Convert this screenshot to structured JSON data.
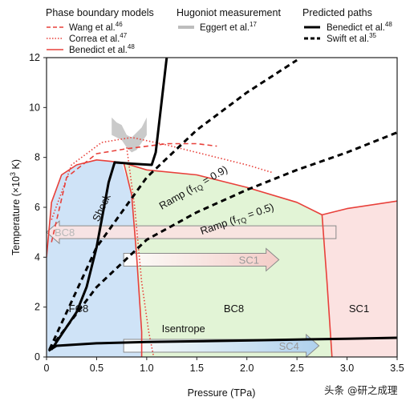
{
  "chart_data": {
    "type": "line",
    "xlabel": "Pressure (TPa)",
    "ylabel": "Temperature (×10³ K)",
    "xlim": [
      0,
      3.5
    ],
    "ylim": [
      0,
      12
    ],
    "x_ticks": [
      "0",
      "0.5",
      "1.0",
      "1.5",
      "2.0",
      "2.5",
      "3.0",
      "3.5"
    ],
    "y_ticks": [
      "0",
      "2",
      "4",
      "6",
      "8",
      "10",
      "12"
    ],
    "legend": {
      "groups": [
        {
          "title": "Phase boundary models",
          "entries": [
            {
              "label": "Wang et al.",
              "sup": "46",
              "style": "dashed",
              "color": "#e8403a"
            },
            {
              "label": "Correa et al.",
              "sup": "47",
              "style": "dotted",
              "color": "#e8403a"
            },
            {
              "label": "Benedict et al.",
              "sup": "48",
              "style": "solid",
              "color": "#e8403a"
            }
          ]
        },
        {
          "title": "Hugoniot measurement",
          "entries": [
            {
              "label": "Eggert et al.",
              "sup": "17",
              "style": "band",
              "color": "#bdbdbd"
            }
          ]
        },
        {
          "title": "Predicted paths",
          "entries": [
            {
              "label": "Benedict et al.",
              "sup": "48",
              "style": "solid-thick",
              "color": "#000000"
            },
            {
              "label": "Swift et al.",
              "sup": "35",
              "style": "dashed-thick",
              "color": "#000000"
            }
          ]
        }
      ]
    },
    "region_fills": {
      "FC8": "#cfe3f7",
      "BC8": "#e2f4d6",
      "SC1": "#fbe2e1"
    },
    "region_labels": [
      {
        "text": "FC8",
        "x": 0.32,
        "y": 1.8
      },
      {
        "text": "BC8",
        "x": 1.87,
        "y": 1.8
      },
      {
        "text": "SC1",
        "x": 3.12,
        "y": 1.8
      }
    ],
    "phase_boundaries": [
      {
        "name": "Benedict et al. melt",
        "style": "solid",
        "color": "#e8403a",
        "points": [
          [
            0.0,
            4.0
          ],
          [
            0.05,
            6.2
          ],
          [
            0.15,
            7.3
          ],
          [
            0.3,
            7.7
          ],
          [
            0.5,
            7.9
          ],
          [
            0.75,
            7.8
          ],
          [
            1.0,
            7.5
          ],
          [
            1.5,
            7.3
          ],
          [
            2.0,
            6.8
          ],
          [
            2.5,
            6.2
          ],
          [
            2.75,
            5.7
          ],
          [
            3.0,
            5.95
          ],
          [
            3.5,
            6.25
          ]
        ]
      },
      {
        "name": "Benedict et al. FC8/BC8",
        "style": "solid",
        "color": "#e8403a",
        "points": [
          [
            0.77,
            7.8
          ],
          [
            0.85,
            6.5
          ],
          [
            0.9,
            4.0
          ],
          [
            0.95,
            1.0
          ],
          [
            0.95,
            0.0
          ]
        ]
      },
      {
        "name": "Benedict et al. BC8/SC1",
        "style": "solid",
        "color": "#e8403a",
        "points": [
          [
            2.75,
            5.7
          ],
          [
            2.8,
            3.0
          ],
          [
            2.85,
            0.0
          ]
        ]
      },
      {
        "name": "Wang et al.",
        "style": "dashed",
        "color": "#e8403a",
        "points": [
          [
            0.05,
            4.6
          ],
          [
            0.2,
            7.2
          ],
          [
            0.5,
            8.15
          ],
          [
            0.8,
            8.35
          ],
          [
            1.2,
            8.55
          ],
          [
            1.5,
            8.55
          ],
          [
            1.7,
            8.45
          ]
        ]
      },
      {
        "name": "Correa et al.",
        "style": "dotted",
        "color": "#e8403a",
        "points": [
          [
            0.05,
            5.5
          ],
          [
            0.25,
            7.7
          ],
          [
            0.55,
            8.6
          ],
          [
            0.85,
            8.8
          ],
          [
            1.2,
            8.5
          ],
          [
            1.6,
            8.1
          ],
          [
            2.0,
            7.7
          ],
          [
            2.25,
            7.4
          ]
        ]
      },
      {
        "name": "Correa et al. FC8/BC8",
        "style": "dotted",
        "color": "#e8403a",
        "points": [
          [
            0.8,
            8.4
          ],
          [
            0.88,
            6.0
          ],
          [
            0.95,
            3.0
          ],
          [
            1.02,
            1.0
          ],
          [
            1.07,
            0.0
          ]
        ]
      }
    ],
    "hugoniot_band": {
      "name": "Eggert et al.",
      "color": "#bdbdbd",
      "upper": [
        [
          0.65,
          9.6
        ],
        [
          0.7,
          9.4
        ],
        [
          0.75,
          9.3
        ],
        [
          0.8,
          8.9
        ],
        [
          0.85,
          8.8
        ],
        [
          0.9,
          9.0
        ],
        [
          0.95,
          9.2
        ],
        [
          1.0,
          9.6
        ]
      ],
      "lower": [
        [
          0.65,
          8.9
        ],
        [
          0.7,
          8.8
        ],
        [
          0.75,
          8.7
        ],
        [
          0.8,
          8.4
        ],
        [
          0.85,
          8.2
        ],
        [
          0.9,
          8.3
        ],
        [
          0.95,
          8.6
        ],
        [
          1.0,
          8.9
        ]
      ]
    },
    "predicted_paths": [
      {
        "name": "Shock",
        "source": "Benedict et al.",
        "style": "solid",
        "color": "#000000",
        "points": [
          [
            0.05,
            0.3
          ],
          [
            0.1,
            0.6
          ],
          [
            0.2,
            1.2
          ],
          [
            0.3,
            1.8
          ],
          [
            0.4,
            2.8
          ],
          [
            0.5,
            4.4
          ],
          [
            0.62,
            7.0
          ],
          [
            0.68,
            7.8
          ],
          [
            0.85,
            7.75
          ],
          [
            1.05,
            7.7
          ],
          [
            1.09,
            8.2
          ],
          [
            1.2,
            12.0
          ]
        ]
      },
      {
        "name": "Isentrope",
        "source": "Benedict et al.",
        "style": "solid",
        "color": "#000000",
        "points": [
          [
            0.02,
            0.25
          ],
          [
            0.1,
            0.45
          ],
          [
            0.5,
            0.55
          ],
          [
            1.0,
            0.6
          ],
          [
            1.5,
            0.63
          ],
          [
            2.0,
            0.66
          ],
          [
            2.5,
            0.7
          ],
          [
            3.0,
            0.73
          ],
          [
            3.5,
            0.77
          ]
        ]
      },
      {
        "name": "Ramp (fTQ = 0.9)",
        "source": "Swift et al.",
        "style": "dashed",
        "color": "#000000",
        "points": [
          [
            0.03,
            0.3
          ],
          [
            0.5,
            4.4
          ],
          [
            1.0,
            7.2
          ],
          [
            1.5,
            9.1
          ],
          [
            2.0,
            10.6
          ],
          [
            2.5,
            11.9
          ]
        ]
      },
      {
        "name": "Ramp (fTQ = 0.5)",
        "source": "Swift et al.",
        "style": "dashed",
        "color": "#000000",
        "points": [
          [
            0.03,
            0.3
          ],
          [
            0.5,
            2.8
          ],
          [
            1.0,
            4.7
          ],
          [
            1.5,
            5.8
          ],
          [
            2.0,
            6.7
          ],
          [
            2.5,
            7.5
          ],
          [
            3.0,
            8.2
          ],
          [
            3.5,
            9.0
          ]
        ]
      }
    ],
    "path_labels": [
      {
        "text": "Shock",
        "x": 0.52,
        "y": 5.4,
        "angle": -65
      },
      {
        "text": "Ramp (f",
        "sub": "TQ",
        "tail": " = 0.9)",
        "x": 1.15,
        "y": 5.9,
        "angle": -30
      },
      {
        "text": "Ramp (f",
        "sub": "TQ",
        "tail": " = 0.5)",
        "x": 1.55,
        "y": 4.9,
        "angle": -19
      },
      {
        "text": "Isentrope",
        "x": 1.15,
        "y": 1.0,
        "angle": 0
      }
    ],
    "phase_arrows": [
      {
        "label": "BC8",
        "direction": "left",
        "x_start": 2.89,
        "x_end": 0.0,
        "y_center": 5.0,
        "fill_from": "#fbe2e1",
        "fill_to": "#fbe2e1",
        "label_color": "#b8b8b8"
      },
      {
        "label": "SC1",
        "direction": "right",
        "x_start": 0.77,
        "x_end": 2.32,
        "y_center": 3.9,
        "fill_from": "#ffffff",
        "fill_to": "#f6c8c6",
        "label_color": "#9a9a9a"
      },
      {
        "label": "SC4",
        "direction": "right",
        "x_start": 0.77,
        "x_end": 2.72,
        "y_center": 0.45,
        "fill_from": "#ffffff",
        "fill_to": "#a9cdf0",
        "label_color": "#9a9a9a"
      }
    ]
  },
  "watermark": "头条 @研之成理"
}
